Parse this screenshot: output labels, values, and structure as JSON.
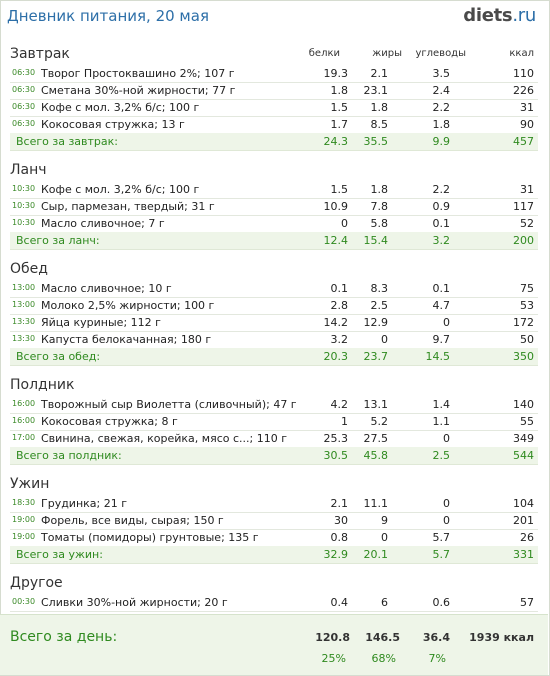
{
  "header": {
    "title": "Дневник питания, 20 мая",
    "brand_main": "diets",
    "brand_suffix": ".ru"
  },
  "columns": {
    "protein": "белки",
    "fat": "жиры",
    "carbs": "углеводы",
    "kcal": "ккал"
  },
  "sections": [
    {
      "name": "Завтрак",
      "items": [
        {
          "time": "06:30",
          "name": "Творог Простоквашино 2%; 107 г",
          "protein": "19.3",
          "fat": "2.1",
          "carbs": "3.5",
          "kcal": "110"
        },
        {
          "time": "06:30",
          "name": "Сметана 30%-ной жирности; 77 г",
          "protein": "1.8",
          "fat": "23.1",
          "carbs": "2.4",
          "kcal": "226"
        },
        {
          "time": "06:30",
          "name": "Кофе с мол. 3,2% б/с; 100 г",
          "protein": "1.5",
          "fat": "1.8",
          "carbs": "2.2",
          "kcal": "31"
        },
        {
          "time": "06:30",
          "name": "Кокосовая стружка; 13 г",
          "protein": "1.7",
          "fat": "8.5",
          "carbs": "1.8",
          "kcal": "90"
        }
      ],
      "subtotal": {
        "label": "Всего за завтрак:",
        "protein": "24.3",
        "fat": "35.5",
        "carbs": "9.9",
        "kcal": "457"
      }
    },
    {
      "name": "Ланч",
      "items": [
        {
          "time": "10:30",
          "name": "Кофе с мол. 3,2% б/с; 100 г",
          "protein": "1.5",
          "fat": "1.8",
          "carbs": "2.2",
          "kcal": "31"
        },
        {
          "time": "10:30",
          "name": "Сыр, пармезан, твердый; 31 г",
          "protein": "10.9",
          "fat": "7.8",
          "carbs": "0.9",
          "kcal": "117"
        },
        {
          "time": "10:30",
          "name": "Масло сливочное; 7 г",
          "protein": "0",
          "fat": "5.8",
          "carbs": "0.1",
          "kcal": "52"
        }
      ],
      "subtotal": {
        "label": "Всего за ланч:",
        "protein": "12.4",
        "fat": "15.4",
        "carbs": "3.2",
        "kcal": "200"
      }
    },
    {
      "name": "Обед",
      "items": [
        {
          "time": "13:00",
          "name": "Масло сливочное; 10 г",
          "protein": "0.1",
          "fat": "8.3",
          "carbs": "0.1",
          "kcal": "75"
        },
        {
          "time": "13:00",
          "name": "Молоко 2,5% жирности; 100 г",
          "protein": "2.8",
          "fat": "2.5",
          "carbs": "4.7",
          "kcal": "53"
        },
        {
          "time": "13:30",
          "name": "Яйца куриные; 112 г",
          "protein": "14.2",
          "fat": "12.9",
          "carbs": "0",
          "kcal": "172"
        },
        {
          "time": "13:30",
          "name": "Капуста белокачанная; 180 г",
          "protein": "3.2",
          "fat": "0",
          "carbs": "9.7",
          "kcal": "50"
        }
      ],
      "subtotal": {
        "label": "Всего за обед:",
        "protein": "20.3",
        "fat": "23.7",
        "carbs": "14.5",
        "kcal": "350"
      }
    },
    {
      "name": "Полдник",
      "items": [
        {
          "time": "16:00",
          "name": "Творожный сыр Виолетта (сливочный); 47 г",
          "protein": "4.2",
          "fat": "13.1",
          "carbs": "1.4",
          "kcal": "140"
        },
        {
          "time": "16:00",
          "name": "Кокосовая стружка; 8 г",
          "protein": "1",
          "fat": "5.2",
          "carbs": "1.1",
          "kcal": "55"
        },
        {
          "time": "17:00",
          "name": "Свинина, свежая, корейка, мясо с...; 110 г",
          "protein": "25.3",
          "fat": "27.5",
          "carbs": "0",
          "kcal": "349"
        }
      ],
      "subtotal": {
        "label": "Всего за полдник:",
        "protein": "30.5",
        "fat": "45.8",
        "carbs": "2.5",
        "kcal": "544"
      }
    },
    {
      "name": "Ужин",
      "items": [
        {
          "time": "18:30",
          "name": "Грудинка; 21 г",
          "protein": "2.1",
          "fat": "11.1",
          "carbs": "0",
          "kcal": "104"
        },
        {
          "time": "19:00",
          "name": "Форель, все виды, сырая; 150 г",
          "protein": "30",
          "fat": "9",
          "carbs": "0",
          "kcal": "201"
        },
        {
          "time": "19:00",
          "name": "Томаты (помидоры) грунтовые; 135 г",
          "protein": "0.8",
          "fat": "0",
          "carbs": "5.7",
          "kcal": "26"
        }
      ],
      "subtotal": {
        "label": "Всего за ужин:",
        "protein": "32.9",
        "fat": "20.1",
        "carbs": "5.7",
        "kcal": "331"
      }
    },
    {
      "name": "Другое",
      "items": [
        {
          "time": "00:30",
          "name": "Сливки 30%-ной жирности; 20 г",
          "protein": "0.4",
          "fat": "6",
          "carbs": "0.6",
          "kcal": "57"
        }
      ],
      "subtotal": null
    }
  ],
  "total": {
    "label": "Всего за день:",
    "protein": "120.8",
    "fat": "146.5",
    "carbs": "36.4",
    "kcal": "1939 ккал",
    "protein_pct": "25%",
    "fat_pct": "68%",
    "carbs_pct": "7%"
  }
}
